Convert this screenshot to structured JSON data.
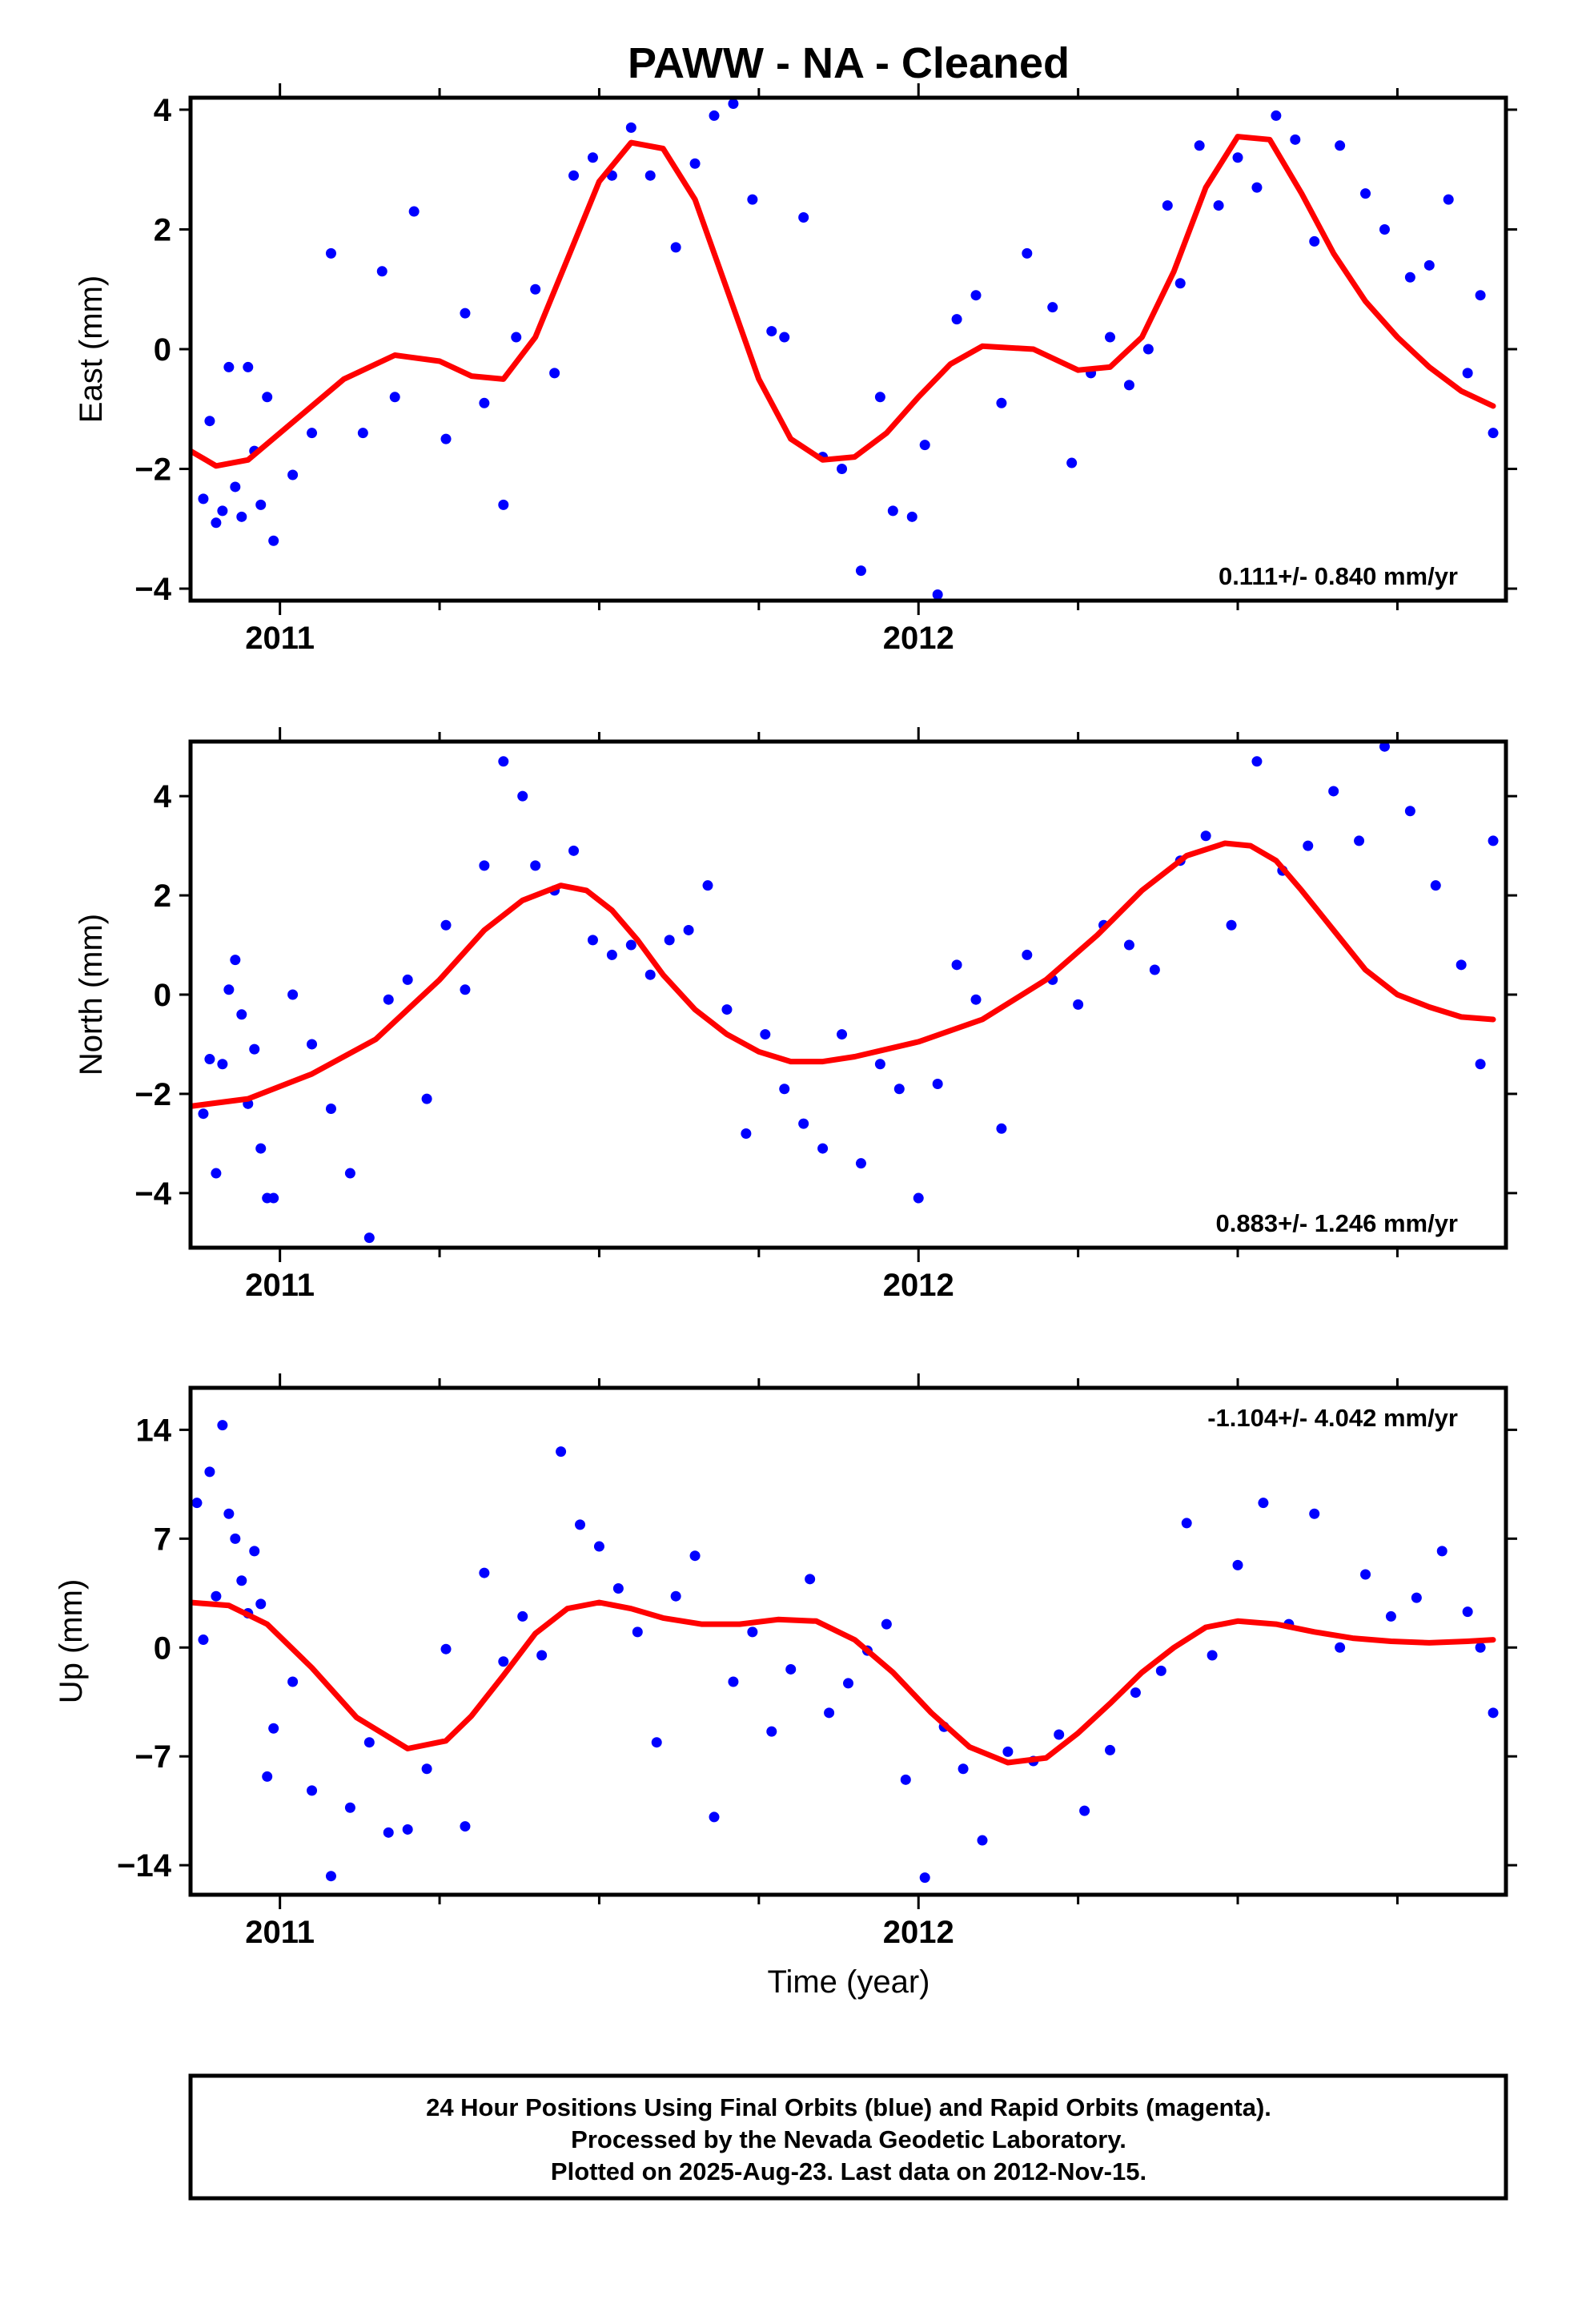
{
  "title": "PAWW  - NA - Cleaned",
  "colors": {
    "data": "#0000ff",
    "fit": "#ff0000",
    "frame": "#000000"
  },
  "footer": {
    "line1": "24 Hour Positions Using Final Orbits (blue) and Rapid Orbits (magenta).",
    "line2": "Processed by the Nevada Geodetic Laboratory.",
    "line3": "Plotted on 2025-Aug-23. Last data on 2012-Nov-15."
  },
  "chart_data": [
    {
      "type": "scatter",
      "ylabel": "East (mm)",
      "xlabel": "",
      "x_tick_labels": [
        "2011",
        "2012"
      ],
      "x_ticks": [
        2011.0,
        2012.0
      ],
      "y_ticks": [
        -4,
        -2,
        0,
        2,
        4
      ],
      "y_tick_labels": [
        "−4",
        "−2",
        "0",
        "2",
        "4"
      ],
      "xlim": [
        2010.86,
        2012.92
      ],
      "ylim": [
        -4.2,
        4.2
      ],
      "rate_label": "0.111+/- 0.840 mm/yr",
      "rate_position": "bottom-right",
      "series": [
        {
          "kind": "points",
          "x": [
            2010.88,
            2010.89,
            2010.9,
            2010.91,
            2010.92,
            2010.93,
            2010.94,
            2010.95,
            2010.96,
            2010.97,
            2010.98,
            2010.99,
            2011.02,
            2011.05,
            2011.08,
            2011.13,
            2011.16,
            2011.18,
            2011.21,
            2011.26,
            2011.29,
            2011.32,
            2011.35,
            2011.37,
            2011.4,
            2011.43,
            2011.46,
            2011.49,
            2011.52,
            2011.55,
            2011.58,
            2011.62,
            2011.65,
            2011.68,
            2011.71,
            2011.74,
            2011.77,
            2011.79,
            2011.82,
            2011.85,
            2011.88,
            2011.91,
            2011.94,
            2011.96,
            2011.99,
            2012.01,
            2012.03,
            2012.06,
            2012.09,
            2012.13,
            2012.17,
            2012.21,
            2012.24,
            2012.27,
            2012.3,
            2012.33,
            2012.36,
            2012.39,
            2012.41,
            2012.44,
            2012.47,
            2012.5,
            2012.53,
            2012.56,
            2012.59,
            2012.62,
            2012.66,
            2012.7,
            2012.73,
            2012.77,
            2012.8,
            2012.83,
            2012.86,
            2012.88,
            2012.9
          ],
          "y": [
            -2.5,
            -1.2,
            -2.9,
            -2.7,
            -0.3,
            -2.3,
            -2.8,
            -0.3,
            -1.7,
            -2.6,
            -0.8,
            -3.2,
            -2.1,
            -1.4,
            1.6,
            -1.4,
            1.3,
            -0.8,
            2.3,
            -1.5,
            0.6,
            -0.9,
            -2.6,
            0.2,
            1.0,
            -0.4,
            2.9,
            3.2,
            2.9,
            3.7,
            2.9,
            1.7,
            3.1,
            3.9,
            4.1,
            2.5,
            0.3,
            0.2,
            2.2,
            -1.8,
            -2.0,
            -3.7,
            -0.8,
            -2.7,
            -2.8,
            -1.6,
            -4.1,
            0.5,
            0.9,
            -0.9,
            1.6,
            0.7,
            -1.9,
            -0.4,
            0.2,
            -0.6,
            0.0,
            2.4,
            1.1,
            3.4,
            2.4,
            3.2,
            2.7,
            3.9,
            3.5,
            1.8,
            3.4,
            2.6,
            2.0,
            1.2,
            1.4,
            2.5,
            -0.4,
            0.9,
            -1.4
          ]
        },
        {
          "kind": "fit",
          "x": [
            2010.86,
            2010.9,
            2010.95,
            2011.0,
            2011.1,
            2011.18,
            2011.25,
            2011.3,
            2011.35,
            2011.4,
            2011.45,
            2011.5,
            2011.55,
            2011.6,
            2011.65,
            2011.7,
            2011.75,
            2011.8,
            2011.85,
            2011.9,
            2011.95,
            2012.0,
            2012.05,
            2012.1,
            2012.18,
            2012.25,
            2012.3,
            2012.35,
            2012.4,
            2012.45,
            2012.5,
            2012.55,
            2012.6,
            2012.65,
            2012.7,
            2012.75,
            2012.8,
            2012.85,
            2012.9
          ],
          "y": [
            -1.7,
            -1.95,
            -1.85,
            -1.4,
            -0.5,
            -0.1,
            -0.2,
            -0.45,
            -0.5,
            0.2,
            1.5,
            2.8,
            3.45,
            3.35,
            2.5,
            1.0,
            -0.5,
            -1.5,
            -1.85,
            -1.8,
            -1.4,
            -0.8,
            -0.25,
            0.05,
            0.0,
            -0.35,
            -0.3,
            0.2,
            1.3,
            2.7,
            3.55,
            3.5,
            2.6,
            1.6,
            0.8,
            0.2,
            -0.3,
            -0.7,
            -0.95
          ]
        }
      ]
    },
    {
      "type": "scatter",
      "ylabel": "North (mm)",
      "xlabel": "",
      "x_tick_labels": [
        "2011",
        "2012"
      ],
      "x_ticks": [
        2011.0,
        2012.0
      ],
      "y_ticks": [
        -4,
        -2,
        0,
        2,
        4
      ],
      "y_tick_labels": [
        "−4",
        "−2",
        "0",
        "2",
        "4"
      ],
      "xlim": [
        2010.86,
        2012.92
      ],
      "ylim": [
        -5.1,
        5.1
      ],
      "rate_label": "0.883+/- 1.246 mm/yr",
      "rate_position": "bottom-right",
      "series": [
        {
          "kind": "points",
          "x": [
            2010.88,
            2010.89,
            2010.9,
            2010.91,
            2010.92,
            2010.93,
            2010.94,
            2010.95,
            2010.96,
            2010.97,
            2010.98,
            2010.99,
            2011.02,
            2011.05,
            2011.08,
            2011.11,
            2011.14,
            2011.17,
            2011.2,
            2011.23,
            2011.26,
            2011.29,
            2011.32,
            2011.35,
            2011.38,
            2011.4,
            2011.43,
            2011.46,
            2011.49,
            2011.52,
            2011.55,
            2011.58,
            2011.61,
            2011.64,
            2011.67,
            2011.7,
            2011.73,
            2011.76,
            2011.79,
            2011.82,
            2011.85,
            2011.88,
            2011.91,
            2011.94,
            2011.97,
            2012.0,
            2012.03,
            2012.06,
            2012.09,
            2012.13,
            2012.17,
            2012.21,
            2012.25,
            2012.29,
            2012.33,
            2012.37,
            2012.41,
            2012.45,
            2012.49,
            2012.53,
            2012.57,
            2012.61,
            2012.65,
            2012.69,
            2012.73,
            2012.77,
            2012.81,
            2012.85,
            2012.88,
            2012.9
          ],
          "y": [
            -2.4,
            -1.3,
            -3.6,
            -1.4,
            0.1,
            0.7,
            -0.4,
            -2.2,
            -1.1,
            -3.1,
            -4.1,
            -4.1,
            0.0,
            -1.0,
            -2.3,
            -3.6,
            -4.9,
            -0.1,
            0.3,
            -2.1,
            1.4,
            0.1,
            2.6,
            4.7,
            4.0,
            2.6,
            2.1,
            2.9,
            1.1,
            0.8,
            1.0,
            0.4,
            1.1,
            1.3,
            2.2,
            -0.3,
            -2.8,
            -0.8,
            -1.9,
            -2.6,
            -3.1,
            -0.8,
            -3.4,
            -1.4,
            -1.9,
            -4.1,
            -1.8,
            0.6,
            -0.1,
            -2.7,
            0.8,
            0.3,
            -0.2,
            1.4,
            1.0,
            0.5,
            2.7,
            3.2,
            1.4,
            4.7,
            2.5,
            3.0,
            4.1,
            3.1,
            5.0,
            3.7,
            2.2,
            0.6,
            -1.4,
            3.1
          ]
        },
        {
          "kind": "fit",
          "x": [
            2010.86,
            2010.95,
            2011.05,
            2011.15,
            2011.25,
            2011.32,
            2011.38,
            2011.44,
            2011.48,
            2011.52,
            2011.56,
            2011.6,
            2011.65,
            2011.7,
            2011.75,
            2011.8,
            2011.85,
            2011.9,
            2011.95,
            2012.0,
            2012.1,
            2012.2,
            2012.28,
            2012.35,
            2012.42,
            2012.48,
            2012.52,
            2012.56,
            2012.6,
            2012.65,
            2012.7,
            2012.75,
            2012.8,
            2012.85,
            2012.9
          ],
          "y": [
            -2.25,
            -2.1,
            -1.6,
            -0.9,
            0.3,
            1.3,
            1.9,
            2.2,
            2.1,
            1.7,
            1.1,
            0.4,
            -0.3,
            -0.8,
            -1.15,
            -1.35,
            -1.35,
            -1.25,
            -1.1,
            -0.95,
            -0.5,
            0.3,
            1.2,
            2.1,
            2.8,
            3.05,
            3.0,
            2.7,
            2.1,
            1.3,
            0.5,
            0.0,
            -0.25,
            -0.45,
            -0.5
          ]
        }
      ]
    },
    {
      "type": "scatter",
      "ylabel": "Up (mm)",
      "xlabel": "Time (year)",
      "x_tick_labels": [
        "2011",
        "2012"
      ],
      "x_ticks": [
        2011.0,
        2012.0
      ],
      "y_ticks": [
        -14,
        -7,
        0,
        7,
        14
      ],
      "y_tick_labels": [
        "−14",
        "−7",
        "0",
        "7",
        "14"
      ],
      "xlim": [
        2010.86,
        2012.92
      ],
      "ylim": [
        -15.9,
        16.7
      ],
      "rate_label": "-1.104+/- 4.042 mm/yr",
      "rate_position": "top-right",
      "series": [
        {
          "kind": "points",
          "x": [
            2010.87,
            2010.88,
            2010.89,
            2010.9,
            2010.91,
            2010.92,
            2010.93,
            2010.94,
            2010.95,
            2010.96,
            2010.97,
            2010.98,
            2010.99,
            2011.02,
            2011.05,
            2011.08,
            2011.11,
            2011.14,
            2011.17,
            2011.2,
            2011.23,
            2011.26,
            2011.29,
            2011.32,
            2011.35,
            2011.38,
            2011.41,
            2011.44,
            2011.47,
            2011.5,
            2011.53,
            2011.56,
            2011.59,
            2011.62,
            2011.65,
            2011.68,
            2011.71,
            2011.74,
            2011.77,
            2011.8,
            2011.83,
            2011.86,
            2011.89,
            2011.92,
            2011.95,
            2011.98,
            2012.01,
            2012.04,
            2012.07,
            2012.1,
            2012.14,
            2012.18,
            2012.22,
            2012.26,
            2012.3,
            2012.34,
            2012.38,
            2012.42,
            2012.46,
            2012.5,
            2012.54,
            2012.58,
            2012.62,
            2012.66,
            2012.7,
            2012.74,
            2012.78,
            2012.82,
            2012.86,
            2012.88,
            2012.9
          ],
          "y": [
            9.3,
            0.5,
            11.3,
            3.3,
            14.3,
            8.6,
            7.0,
            4.3,
            2.2,
            6.2,
            2.8,
            -8.3,
            -5.2,
            -2.2,
            -9.2,
            -14.7,
            -10.3,
            -6.1,
            -11.9,
            -11.7,
            -7.8,
            -0.1,
            -11.5,
            4.8,
            -0.9,
            2.0,
            -0.5,
            12.6,
            7.9,
            6.5,
            3.8,
            1.0,
            -6.1,
            3.3,
            5.9,
            -10.9,
            -2.2,
            1.0,
            -5.4,
            -1.4,
            4.4,
            -4.2,
            -2.3,
            -0.2,
            1.5,
            -8.5,
            -14.8,
            -5.1,
            -7.8,
            -12.4,
            -6.7,
            -7.3,
            -5.6,
            -10.5,
            -6.6,
            -2.9,
            -1.5,
            8.0,
            -0.5,
            5.3,
            9.3,
            1.5,
            8.6,
            0.0,
            4.7,
            2.0,
            3.2,
            6.2,
            2.3,
            0.0,
            -4.2
          ]
        },
        {
          "kind": "fit",
          "x": [
            2010.86,
            2010.92,
            2010.98,
            2011.05,
            2011.12,
            2011.2,
            2011.26,
            2011.3,
            2011.35,
            2011.4,
            2011.45,
            2011.5,
            2011.55,
            2011.6,
            2011.66,
            2011.72,
            2011.78,
            2011.84,
            2011.9,
            2011.96,
            2012.02,
            2012.08,
            2012.14,
            2012.2,
            2012.25,
            2012.3,
            2012.35,
            2012.4,
            2012.45,
            2012.5,
            2012.56,
            2012.62,
            2012.68,
            2012.74,
            2012.8,
            2012.86,
            2012.9
          ],
          "y": [
            2.9,
            2.7,
            1.5,
            -1.3,
            -4.5,
            -6.5,
            -6.0,
            -4.4,
            -1.8,
            0.9,
            2.5,
            2.9,
            2.5,
            1.9,
            1.5,
            1.5,
            1.8,
            1.7,
            0.5,
            -1.6,
            -4.2,
            -6.4,
            -7.4,
            -7.1,
            -5.5,
            -3.6,
            -1.6,
            0.0,
            1.3,
            1.7,
            1.5,
            1.0,
            0.6,
            0.4,
            0.3,
            0.4,
            0.5
          ]
        }
      ]
    }
  ]
}
